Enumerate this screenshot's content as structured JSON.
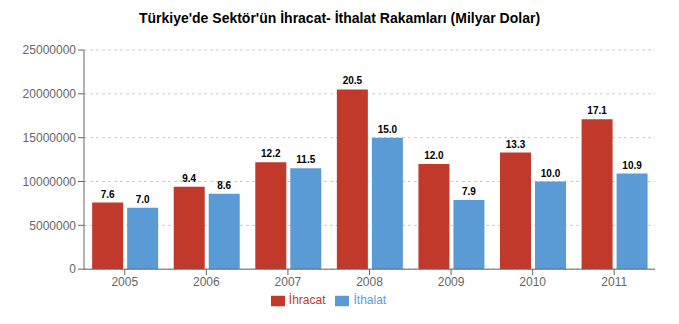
{
  "chart_data": {
    "type": "bar",
    "title": "Türkiye'de Sektör'ün İhracat- İthalat Rakamları (Milyar Dolar)",
    "categories": [
      "2005",
      "2006",
      "2007",
      "2008",
      "2009",
      "2010",
      "2011"
    ],
    "series": [
      {
        "name": "İhracat",
        "color": "#C0392B",
        "values": [
          7600000,
          9400000,
          12200000,
          20500000,
          12000000,
          13300000,
          17100000
        ],
        "value_labels": [
          "7.6",
          "9.4",
          "12.2",
          "20.5",
          "12.0",
          "13.3",
          "17.1"
        ]
      },
      {
        "name": "İthalat",
        "color": "#5B9BD5",
        "values": [
          7000000,
          8600000,
          11500000,
          15000000,
          7900000,
          10000000,
          10900000
        ],
        "value_labels": [
          "7.0",
          "8.6",
          "11.5",
          "15.0",
          "7.9",
          "10.0",
          "10.9"
        ]
      }
    ],
    "ylim": [
      0,
      25000000
    ],
    "yticks": [
      0,
      5000000,
      10000000,
      15000000,
      20000000,
      25000000
    ],
    "grid": true,
    "legend": "bottom",
    "data_labels": true
  }
}
